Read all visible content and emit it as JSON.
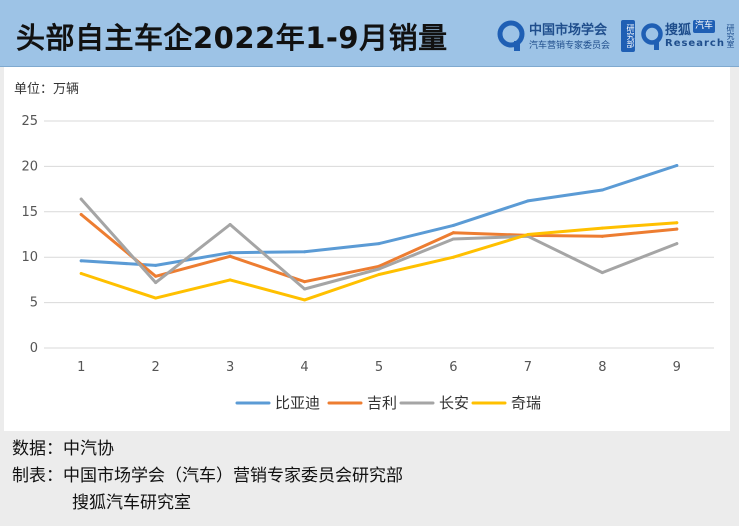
{
  "header": {
    "title": "头部自主车企2022年1-9月销量",
    "logo_cma": {
      "name": "中国市场学会",
      "sub": "汽车营销专家委员会",
      "badge": "研究部"
    },
    "logo_sohu": {
      "name": "搜狐",
      "tag": "汽车",
      "sub": "Research",
      "badge": "研究室"
    }
  },
  "chart": {
    "unit_label": "单位：万辆"
  },
  "chart_data": {
    "type": "line",
    "title": "",
    "xlabel": "",
    "ylabel": "",
    "categories": [
      "1",
      "2",
      "3",
      "4",
      "5",
      "6",
      "7",
      "8",
      "9"
    ],
    "ylim": [
      0,
      25
    ],
    "yticks": [
      0,
      5,
      10,
      15,
      20,
      25
    ],
    "grid": true,
    "legend_position": "bottom",
    "series": [
      {
        "name": "比亚迪",
        "color": "#5b9bd5",
        "values": [
          9.6,
          9.1,
          10.5,
          10.6,
          11.5,
          13.5,
          16.2,
          17.4,
          20.1
        ]
      },
      {
        "name": "吉利",
        "color": "#ed7d31",
        "values": [
          14.7,
          7.9,
          10.1,
          7.3,
          9.0,
          12.7,
          12.4,
          12.3,
          13.1
        ]
      },
      {
        "name": "长安",
        "color": "#a5a5a5",
        "values": [
          16.4,
          7.2,
          13.6,
          6.5,
          8.7,
          12.0,
          12.3,
          8.3,
          11.5
        ]
      },
      {
        "name": "奇瑞",
        "color": "#ffc000",
        "values": [
          8.2,
          5.5,
          7.5,
          5.3,
          8.1,
          10.0,
          12.5,
          13.2,
          13.8
        ]
      }
    ]
  },
  "footer": {
    "source_label": "数据：中汽协",
    "maker_label": "制表：中国市场学会（汽车）营销专家委员会研究部",
    "maker_line2": "搜狐汽车研究室"
  }
}
